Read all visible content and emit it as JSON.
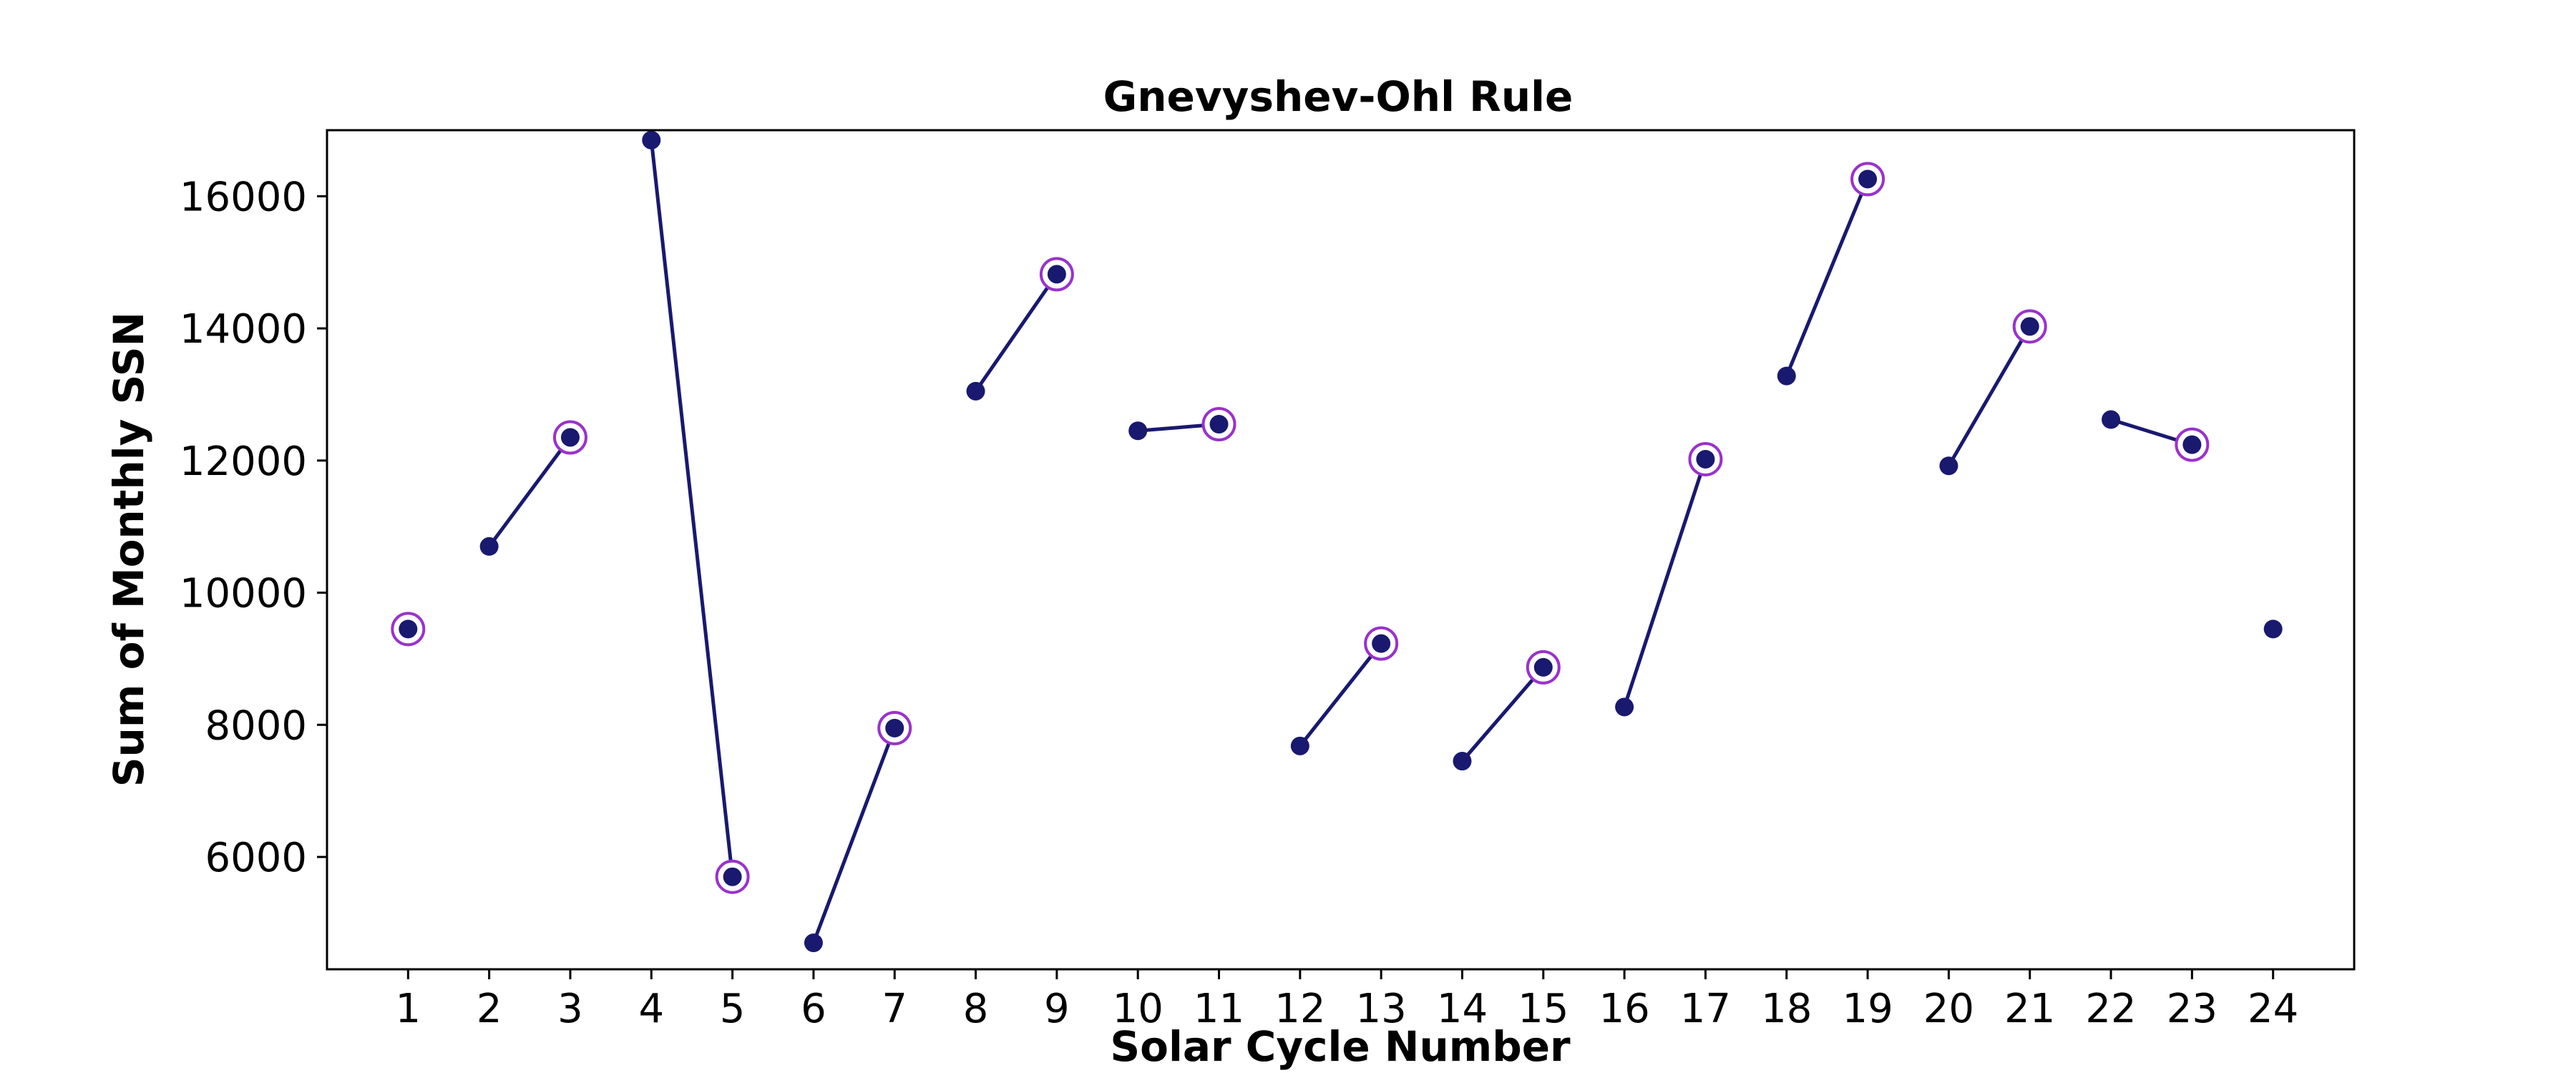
{
  "colors": {
    "series": "#191970",
    "odd_marker_ring": "#9932CC",
    "axes": "#000000",
    "background": "#ffffff"
  },
  "chart_data": {
    "type": "line",
    "title": "Gnevyshev-Ohl Rule",
    "xlabel": "Solar Cycle Number",
    "ylabel": "Sum of Monthly SSN",
    "xlim": [
      0,
      25
    ],
    "ylim": [
      4300,
      17000
    ],
    "xticks": [
      1,
      2,
      3,
      4,
      5,
      6,
      7,
      8,
      9,
      10,
      11,
      12,
      13,
      14,
      15,
      16,
      17,
      18,
      19,
      20,
      21,
      22,
      23,
      24
    ],
    "yticks": [
      6000,
      8000,
      10000,
      12000,
      14000,
      16000
    ],
    "grid": false,
    "legend": "none",
    "x": [
      1,
      2,
      3,
      4,
      5,
      6,
      7,
      8,
      9,
      10,
      11,
      12,
      13,
      14,
      15,
      16,
      17,
      18,
      19,
      20,
      21,
      22,
      23,
      24
    ],
    "values": [
      9450,
      10700,
      12350,
      16850,
      5700,
      4700,
      7950,
      13050,
      14820,
      12450,
      12550,
      7680,
      9230,
      7450,
      8870,
      8270,
      12020,
      13280,
      16260,
      11920,
      14030,
      12620,
      12240,
      9450
    ],
    "pairs": [
      [
        2,
        3
      ],
      [
        4,
        5
      ],
      [
        6,
        7
      ],
      [
        8,
        9
      ],
      [
        10,
        11
      ],
      [
        12,
        13
      ],
      [
        14,
        15
      ],
      [
        16,
        17
      ],
      [
        18,
        19
      ],
      [
        20,
        21
      ],
      [
        22,
        23
      ]
    ],
    "ringed_cycles": [
      1,
      3,
      5,
      7,
      9,
      11,
      13,
      15,
      17,
      19,
      21,
      23
    ]
  }
}
